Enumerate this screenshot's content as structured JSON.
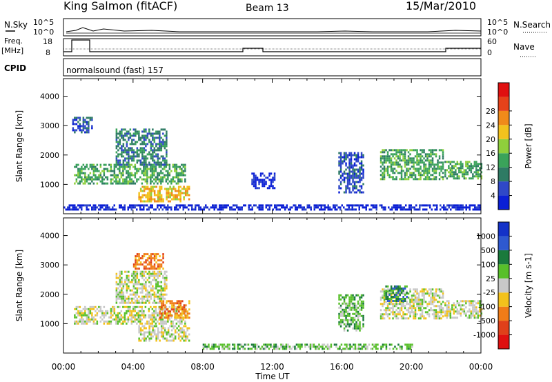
{
  "header": {
    "station": "King Salmon (fitACF)",
    "beam": "Beam 13",
    "date": "15/Mar/2010"
  },
  "summary_panels": {
    "nsky_label": "N.Sky",
    "nsearch_label": "N.Search",
    "freq_label_1": "Freq.",
    "freq_label_2": "[MHz]",
    "nave_label": "Nave",
    "cpid_label": "CPID",
    "cpid_text": "normalsound (fast) 157",
    "nsky_ticks": [
      "10^5",
      "10^0"
    ],
    "nsearch_ticks": [
      "10^5",
      "10^0"
    ],
    "freq_ticks": [
      "18",
      "8"
    ],
    "nave_ticks": [
      "60",
      "0"
    ]
  },
  "chart_data": [
    {
      "type": "heatmap",
      "panel": "power",
      "ylabel": "Slant Range [km]",
      "xlim": [
        0,
        24
      ],
      "ylim": [
        0,
        4600
      ],
      "yticks": [
        1000,
        2000,
        3000,
        4000
      ],
      "colorbar": {
        "label": "Power [dB]",
        "ticks": [
          "4",
          "8",
          "12",
          "16",
          "20",
          "24",
          "28"
        ],
        "colors": [
          "#0b1fd6",
          "#2f48c8",
          "#2e7b64",
          "#3aa35a",
          "#8fcf3c",
          "#f2c21d",
          "#f08a1a",
          "#e6421a",
          "#e01010"
        ]
      },
      "regions": [
        {
          "t": [
            0.6,
            7.0
          ],
          "r": [
            1000,
            1700
          ],
          "level": 3
        },
        {
          "t": [
            3.0,
            5.9
          ],
          "r": [
            1700,
            2900
          ],
          "level": 2
        },
        {
          "t": [
            4.3,
            7.2
          ],
          "r": [
            400,
            950
          ],
          "level": 5
        },
        {
          "t": [
            0.5,
            1.6
          ],
          "r": [
            2800,
            3300
          ],
          "level": 1
        },
        {
          "t": [
            10.8,
            12.1
          ],
          "r": [
            900,
            1400
          ],
          "level": 0
        },
        {
          "t": [
            15.8,
            17.2
          ],
          "r": [
            700,
            2100
          ],
          "level": 1
        },
        {
          "t": [
            18.2,
            21.8
          ],
          "r": [
            1200,
            2200
          ],
          "level": 3
        },
        {
          "t": [
            21.9,
            24.0
          ],
          "r": [
            1200,
            1800
          ],
          "level": 3
        },
        {
          "t": [
            0.0,
            24.0
          ],
          "r": [
            120,
            320
          ],
          "level": 0
        }
      ]
    },
    {
      "type": "heatmap",
      "panel": "velocity",
      "ylabel": "Slant Range [km]",
      "xlabel": "Time UT",
      "xlim": [
        0,
        24
      ],
      "ylim": [
        0,
        4600
      ],
      "yticks": [
        1000,
        2000,
        3000,
        4000
      ],
      "xticks": [
        "00:00",
        "04:00",
        "08:00",
        "12:00",
        "16:00",
        "20:00",
        "00:00"
      ],
      "colorbar": {
        "label": "Velocity [m s-1]",
        "ticks": [
          "1000",
          "500",
          "100",
          "25",
          "-25",
          "-100",
          "-500",
          "-1000"
        ],
        "colors": [
          "#1432c8",
          "#2f59d0",
          "#1a7a3c",
          "#58c02a",
          "#c8c8c8",
          "#f3c21c",
          "#f07c18",
          "#e0401a",
          "#e01010"
        ]
      },
      "regions": [
        {
          "t": [
            0.6,
            7.0
          ],
          "r": [
            1000,
            1600
          ],
          "level": 4
        },
        {
          "t": [
            3.0,
            5.9
          ],
          "r": [
            1700,
            2800
          ],
          "level": 4
        },
        {
          "t": [
            4.3,
            7.2
          ],
          "r": [
            400,
            950
          ],
          "level": 4
        },
        {
          "t": [
            5.5,
            7.2
          ],
          "r": [
            1200,
            1800
          ],
          "level": 6
        },
        {
          "t": [
            4.0,
            5.7
          ],
          "r": [
            2900,
            3400
          ],
          "level": 6
        },
        {
          "t": [
            15.8,
            17.2
          ],
          "r": [
            800,
            2000
          ],
          "level": 3
        },
        {
          "t": [
            18.2,
            21.8
          ],
          "r": [
            1200,
            2200
          ],
          "level": 4
        },
        {
          "t": [
            18.5,
            19.7
          ],
          "r": [
            1800,
            2300
          ],
          "level": 2
        },
        {
          "t": [
            21.9,
            24.0
          ],
          "r": [
            1200,
            1800
          ],
          "level": 4
        },
        {
          "t": [
            8.0,
            20.0
          ],
          "r": [
            120,
            320
          ],
          "level": 3
        }
      ]
    }
  ]
}
